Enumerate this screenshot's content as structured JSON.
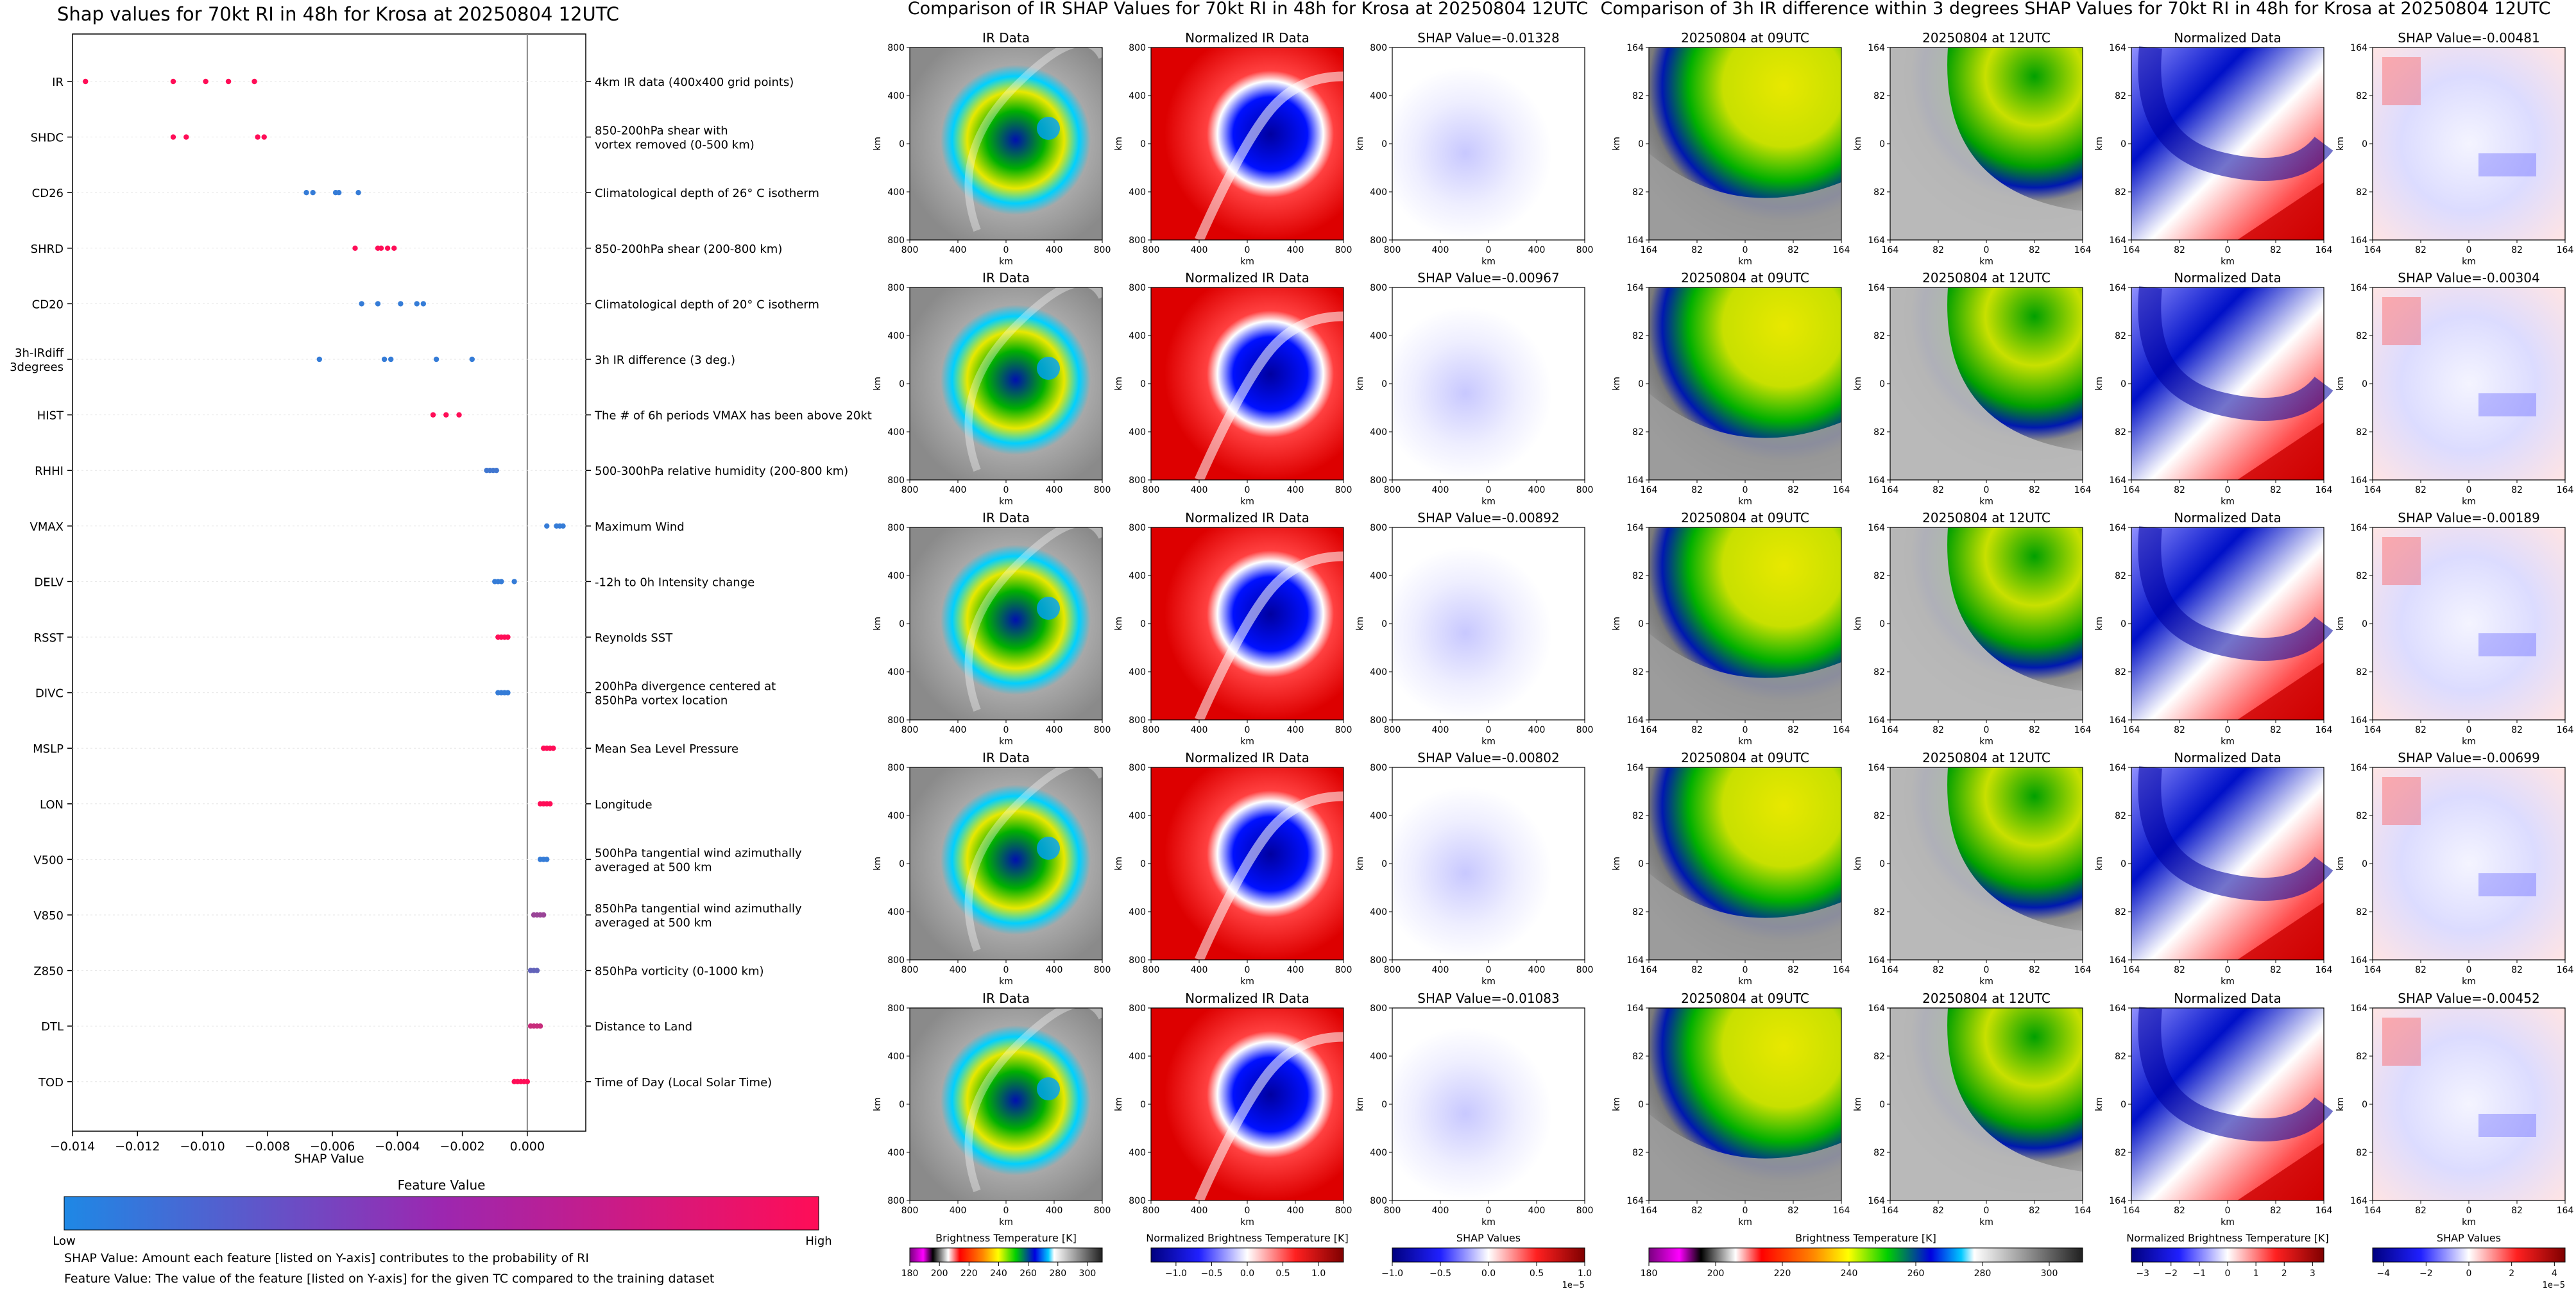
{
  "shap_summary": {
    "title": "Shap values for 70kt RI in 48h for Krosa at 20250804 12UTC",
    "xlabel": "SHAP Value",
    "xticks": [
      "−0.014",
      "−0.012",
      "−0.010",
      "−0.008",
      "−0.006",
      "−0.004",
      "−0.002",
      "0.000"
    ],
    "colorbar_title": "Feature Value",
    "colorbar_low": "Low",
    "colorbar_high": "High",
    "colorbar_colors": [
      "#1e88e5",
      "#ff0d57"
    ],
    "note1": "SHAP Value: Amount each feature [listed on Y-axis] contributes to the probability of RI",
    "note2": "Feature Value: The value of the feature [listed on Y-axis] for the given TC compared to the training dataset"
  },
  "chart_data": [
    {
      "type": "scatter",
      "title": "Shap values for 70kt RI in 48h for Krosa at 20250804 12UTC",
      "xlabel": "SHAP Value",
      "xlim": [
        -0.014,
        0.0018
      ],
      "features": [
        {
          "name": "IR",
          "desc": "4km IR data (400x400 grid points)",
          "points": [
            [
              -0.0136,
              1.0
            ],
            [
              -0.0109,
              1.0
            ],
            [
              -0.0099,
              1.0
            ],
            [
              -0.0092,
              1.0
            ],
            [
              -0.0084,
              1.0
            ]
          ]
        },
        {
          "name": "SHDC",
          "desc": "850-200hPa shear with\nvortex removed (0-500 km)",
          "points": [
            [
              -0.0109,
              1.0
            ],
            [
              -0.0105,
              1.0
            ],
            [
              -0.0083,
              1.0
            ],
            [
              -0.0081,
              1.0
            ]
          ]
        },
        {
          "name": "CD26",
          "desc": "Climatological depth of 26° C isotherm",
          "points": [
            [
              -0.0068,
              0.1
            ],
            [
              -0.0066,
              0.1
            ],
            [
              -0.0059,
              0.1
            ],
            [
              -0.0058,
              0.1
            ],
            [
              -0.0052,
              0.1
            ]
          ]
        },
        {
          "name": "SHRD",
          "desc": "850-200hPa shear (200-800 km)",
          "points": [
            [
              -0.0053,
              1.0
            ],
            [
              -0.0046,
              1.0
            ],
            [
              -0.0045,
              1.0
            ],
            [
              -0.0043,
              1.0
            ],
            [
              -0.0041,
              1.0
            ]
          ]
        },
        {
          "name": "CD20",
          "desc": "Climatological depth of 20° C isotherm",
          "points": [
            [
              -0.0051,
              0.1
            ],
            [
              -0.0046,
              0.1
            ],
            [
              -0.0039,
              0.1
            ],
            [
              -0.0034,
              0.1
            ],
            [
              -0.0032,
              0.1
            ]
          ]
        },
        {
          "name": "3h-IRdiff\n3degrees",
          "desc": "3h IR difference (3 deg.)",
          "points": [
            [
              -0.0064,
              0.1
            ],
            [
              -0.0044,
              0.1
            ],
            [
              -0.0042,
              0.1
            ],
            [
              -0.0028,
              0.1
            ],
            [
              -0.0017,
              0.1
            ]
          ]
        },
        {
          "name": "HIST",
          "desc": "The # of 6h periods VMAX has been above 20kt",
          "points": [
            [
              -0.0029,
              1.0
            ],
            [
              -0.0025,
              1.0
            ],
            [
              -0.0021,
              1.0
            ]
          ]
        },
        {
          "name": "RHHI",
          "desc": "500-300hPa relative humidity (200-800 km)",
          "points": [
            [
              -0.00125,
              0.15
            ],
            [
              -0.00115,
              0.15
            ],
            [
              -0.00105,
              0.15
            ],
            [
              -0.00095,
              0.15
            ]
          ]
        },
        {
          "name": "VMAX",
          "desc": "Maximum Wind",
          "points": [
            [
              0.0006,
              0.1
            ],
            [
              0.0009,
              0.1
            ],
            [
              0.001,
              0.1
            ],
            [
              0.0011,
              0.1
            ]
          ]
        },
        {
          "name": "DELV",
          "desc": "-12h to 0h Intensity change",
          "points": [
            [
              -0.001,
              0.1
            ],
            [
              -0.0009,
              0.1
            ],
            [
              -0.0008,
              0.1
            ],
            [
              -0.0004,
              0.1
            ]
          ]
        },
        {
          "name": "RSST",
          "desc": "Reynolds SST",
          "points": [
            [
              -0.0009,
              1.0
            ],
            [
              -0.0008,
              1.0
            ],
            [
              -0.0007,
              1.0
            ],
            [
              -0.0006,
              1.0
            ]
          ]
        },
        {
          "name": "DIVC",
          "desc": "200hPa divergence centered at\n850hPa vortex location",
          "points": [
            [
              -0.0009,
              0.1
            ],
            [
              -0.0008,
              0.1
            ],
            [
              -0.0007,
              0.1
            ],
            [
              -0.0006,
              0.1
            ]
          ]
        },
        {
          "name": "MSLP",
          "desc": "Mean Sea Level Pressure",
          "points": [
            [
              0.0005,
              1.0
            ],
            [
              0.0006,
              1.0
            ],
            [
              0.0007,
              1.0
            ],
            [
              0.0008,
              1.0
            ]
          ]
        },
        {
          "name": "LON",
          "desc": "Longitude",
          "points": [
            [
              0.0004,
              1.0
            ],
            [
              0.0005,
              1.0
            ],
            [
              0.0006,
              1.0
            ],
            [
              0.0007,
              1.0
            ]
          ]
        },
        {
          "name": "V500",
          "desc": "500hPa tangential wind azimuthally\naveraged at 500 km",
          "points": [
            [
              0.0004,
              0.1
            ],
            [
              0.0005,
              0.1
            ],
            [
              0.0006,
              0.1
            ]
          ]
        },
        {
          "name": "V850",
          "desc": "850hPa tangential wind azimuthally\naveraged at 500 km",
          "points": [
            [
              0.0002,
              0.55
            ],
            [
              0.0003,
              0.55
            ],
            [
              0.0004,
              0.55
            ],
            [
              0.0005,
              0.55
            ]
          ]
        },
        {
          "name": "Z850",
          "desc": "850hPa vorticity (0-1000 km)",
          "points": [
            [
              0.0001,
              0.3
            ],
            [
              0.0002,
              0.3
            ],
            [
              0.0003,
              0.3
            ]
          ]
        },
        {
          "name": "DTL",
          "desc": "Distance to Land",
          "points": [
            [
              0.0001,
              0.75
            ],
            [
              0.0002,
              0.75
            ],
            [
              0.0003,
              0.75
            ],
            [
              0.0004,
              0.75
            ]
          ]
        },
        {
          "name": "TOD",
          "desc": "Time of Day (Local Solar Time)",
          "points": [
            [
              -0.0004,
              1.0
            ],
            [
              -0.0003,
              1.0
            ],
            [
              -0.0002,
              1.0
            ],
            [
              -0.0001,
              1.0
            ],
            [
              0.0,
              1.0
            ]
          ]
        }
      ]
    },
    {
      "type": "heatmap",
      "title": "Comparison of IR SHAP Values for 70kt RI in 48h for Krosa at 20250804 12UTC",
      "panel_titles": [
        "IR Data",
        "Normalized IR Data"
      ],
      "shap_values": [
        "SHAP Value=-0.01328",
        "SHAP Value=-0.00967",
        "SHAP Value=-0.00892",
        "SHAP Value=-0.00802",
        "SHAP Value=-0.01083"
      ],
      "axis_label": "km",
      "ticks_x": [
        "800",
        "400",
        "0",
        "400",
        "800"
      ],
      "ticks_y": [
        "800",
        "400",
        "0",
        "400",
        "800"
      ],
      "colorbars": [
        {
          "label": "Brightness Temperature [K]",
          "ticks": [
            "180",
            "200",
            "220",
            "240",
            "260",
            "280",
            "300"
          ],
          "min": 180,
          "max": 310
        },
        {
          "label": "Normalized Brightness Temperature [K]",
          "ticks": [
            "−1.0",
            "−0.5",
            "0.0",
            "0.5",
            "1.0"
          ],
          "min": -1.35,
          "max": 1.35
        },
        {
          "label": "SHAP Values",
          "ticks": [
            "−1.0",
            "−0.5",
            "0.0",
            "0.5",
            "1.0"
          ],
          "min": -1.0,
          "max": 1.0,
          "exponent": "1e−5"
        }
      ]
    },
    {
      "type": "heatmap",
      "title": "Comparison of 3h IR difference within 3 degrees SHAP Values for 70kt RI in 48h for Krosa at 20250804 12UTC",
      "panel_titles": [
        "20250804 at 09UTC",
        "20250804 at 12UTC",
        "Normalized Data"
      ],
      "shap_values": [
        "SHAP Value=-0.00481",
        "SHAP Value=-0.00304",
        "SHAP Value=-0.00189",
        "SHAP Value=-0.00699",
        "SHAP Value=-0.00452"
      ],
      "axis_label": "km",
      "ticks_x": [
        "164",
        "82",
        "0",
        "82",
        "164"
      ],
      "ticks_y": [
        "164",
        "82",
        "0",
        "82",
        "164"
      ],
      "colorbars": [
        {
          "label": "Brightness Temperature [K]",
          "ticks": [
            "180",
            "200",
            "220",
            "240",
            "260",
            "280",
            "300"
          ],
          "min": 180,
          "max": 310
        },
        {
          "label": "Normalized Brightness Temperature [K]",
          "ticks": [
            "−3",
            "−2",
            "−1",
            "0",
            "1",
            "2",
            "3"
          ],
          "min": -3.4,
          "max": 3.4
        },
        {
          "label": "SHAP Values",
          "ticks": [
            "−4",
            "−2",
            "0",
            "2",
            "4"
          ],
          "min": -4.5,
          "max": 4.5,
          "exponent": "1e−5"
        }
      ]
    }
  ],
  "colors": {
    "low": "#1e88e5",
    "high": "#ff0d57",
    "grid": "#dddddd"
  }
}
